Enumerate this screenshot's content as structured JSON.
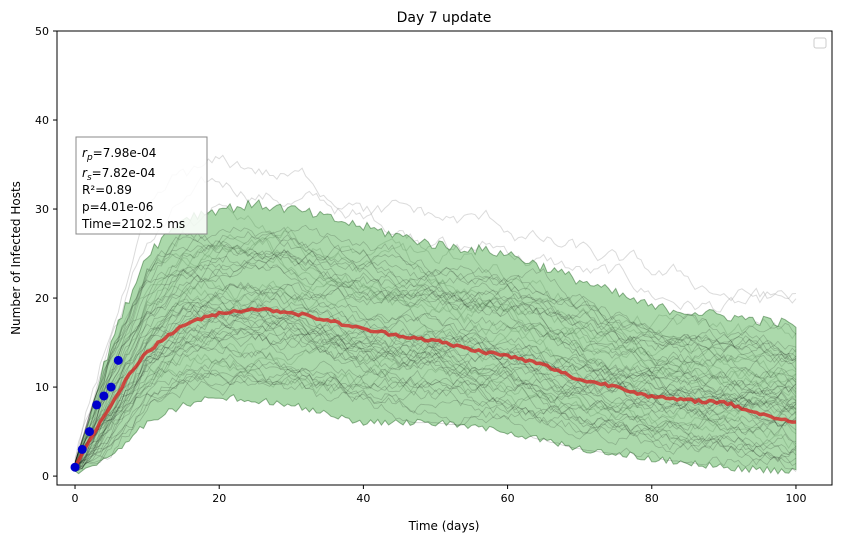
{
  "chart_data": {
    "type": "line",
    "title": "Day 7 update",
    "xlabel": "Time (days)",
    "ylabel": "Number of Infected Hosts",
    "xlim": [
      -2.5,
      105
    ],
    "ylim": [
      -1,
      50
    ],
    "xticks": [
      0,
      20,
      40,
      60,
      80,
      100
    ],
    "yticks": [
      0,
      10,
      20,
      30,
      40,
      50
    ],
    "grid": false,
    "legend": {
      "placement": "top-right",
      "entries": []
    },
    "annotation": {
      "rp_symbol": "r",
      "rp_sub": "p",
      "rp_value": "=7.98e-04",
      "rs_symbol": "r",
      "rs_sub": "s",
      "rs_value": "=7.82e-04",
      "r2": "R²=0.89",
      "p": "p=4.01e-06",
      "time": "Time=2102.5 ms"
    },
    "colors": {
      "mean": "#d62728",
      "band": "#2ca02c",
      "observed": "#0000cc",
      "traces": "#000000"
    },
    "observed": {
      "x": [
        0,
        1,
        2,
        3,
        4,
        5,
        6
      ],
      "y": [
        1,
        3,
        5,
        8,
        9,
        10,
        13
      ]
    },
    "mean": {
      "x": [
        0,
        2,
        5,
        8,
        10,
        15,
        20,
        25,
        30,
        35,
        40,
        45,
        50,
        55,
        60,
        65,
        70,
        75,
        80,
        85,
        90,
        95,
        100
      ],
      "y": [
        1,
        4,
        8,
        12,
        14,
        17,
        18.3,
        18.8,
        18.4,
        17.5,
        16.5,
        15.8,
        15.2,
        14.2,
        13.5,
        12.5,
        10.8,
        10.1,
        8.9,
        8.5,
        8.3,
        7,
        6
      ]
    },
    "band": {
      "x": [
        0,
        5,
        10,
        15,
        20,
        25,
        30,
        40,
        50,
        60,
        70,
        80,
        90,
        100
      ],
      "upper": [
        1.5,
        15,
        25,
        29,
        30,
        30.5,
        30,
        28,
        26,
        25,
        22,
        19,
        18,
        17
      ],
      "lower": [
        0.5,
        2,
        6,
        8,
        9,
        8.5,
        8,
        6,
        6,
        5,
        3,
        2,
        1,
        0.5
      ]
    }
  }
}
